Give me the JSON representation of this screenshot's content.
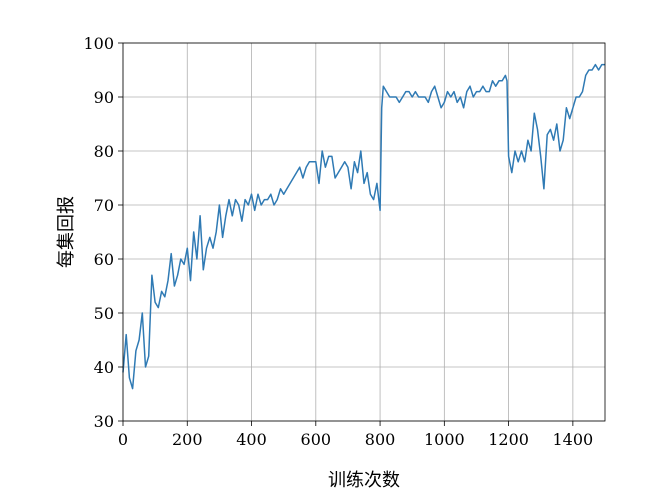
{
  "chart_data": {
    "type": "line",
    "title": "",
    "xlabel": "训练次数",
    "ylabel": "每集回报",
    "xlim": [
      0,
      1500
    ],
    "ylim": [
      30,
      100
    ],
    "xticks": [
      0,
      200,
      400,
      600,
      800,
      1000,
      1200,
      1400
    ],
    "yticks": [
      30,
      40,
      50,
      60,
      70,
      80,
      90,
      100
    ],
    "grid": true,
    "legend": "none",
    "line_color": "#2f7ab4",
    "series": [
      {
        "x": [
          0,
          10,
          20,
          30,
          40,
          50,
          60,
          70,
          80,
          90,
          100,
          110,
          120,
          130,
          140,
          150,
          160,
          170,
          180,
          190,
          200,
          210,
          220,
          230,
          240,
          250,
          260,
          270,
          280,
          290,
          300,
          310,
          320,
          330,
          340,
          350,
          360,
          370,
          380,
          390,
          400,
          410,
          420,
          430,
          440,
          450,
          460,
          470,
          480,
          490,
          500,
          510,
          520,
          530,
          540,
          550,
          560,
          570,
          580,
          590,
          600,
          610,
          620,
          630,
          640,
          650,
          660,
          670,
          680,
          690,
          700,
          710,
          720,
          730,
          740,
          750,
          760,
          770,
          780,
          790,
          800,
          805,
          810,
          820,
          830,
          840,
          850,
          860,
          870,
          880,
          890,
          900,
          910,
          920,
          930,
          940,
          950,
          960,
          970,
          980,
          990,
          1000,
          1010,
          1020,
          1030,
          1040,
          1050,
          1060,
          1070,
          1080,
          1090,
          1100,
          1110,
          1120,
          1130,
          1140,
          1150,
          1160,
          1170,
          1180,
          1190,
          1195,
          1200,
          1210,
          1220,
          1230,
          1240,
          1250,
          1260,
          1270,
          1280,
          1290,
          1300,
          1310,
          1320,
          1330,
          1340,
          1350,
          1360,
          1370,
          1380,
          1390,
          1400,
          1410,
          1420,
          1430,
          1440,
          1450,
          1460,
          1470,
          1480,
          1490,
          1500
        ],
        "y": [
          39,
          46,
          38,
          36,
          43,
          45,
          50,
          40,
          42,
          57,
          52,
          51,
          54,
          53,
          56,
          61,
          55,
          57,
          60,
          59,
          62,
          56,
          65,
          60,
          68,
          58,
          62,
          64,
          62,
          65,
          70,
          64,
          68,
          71,
          68,
          71,
          70,
          67,
          71,
          70,
          72,
          69,
          72,
          70,
          71,
          71,
          72,
          70,
          71,
          73,
          72,
          73,
          74,
          75,
          76,
          77,
          75,
          77,
          78,
          78,
          78,
          74,
          80,
          77,
          79,
          79,
          75,
          76,
          77,
          78,
          77,
          73,
          78,
          76,
          80,
          74,
          76,
          72,
          71,
          74,
          69,
          88,
          92,
          91,
          90,
          90,
          90,
          89,
          90,
          91,
          91,
          90,
          91,
          90,
          90,
          90,
          89,
          91,
          92,
          90,
          88,
          89,
          91,
          90,
          91,
          89,
          90,
          88,
          91,
          92,
          90,
          91,
          91,
          92,
          91,
          91,
          93,
          92,
          93,
          93,
          94,
          93,
          79,
          76,
          80,
          78,
          80,
          78,
          82,
          80,
          87,
          84,
          79,
          73,
          83,
          84,
          82,
          85,
          80,
          82,
          88,
          86,
          88,
          90,
          90,
          91,
          94,
          95,
          95,
          96,
          95,
          96,
          96
        ]
      }
    ]
  }
}
